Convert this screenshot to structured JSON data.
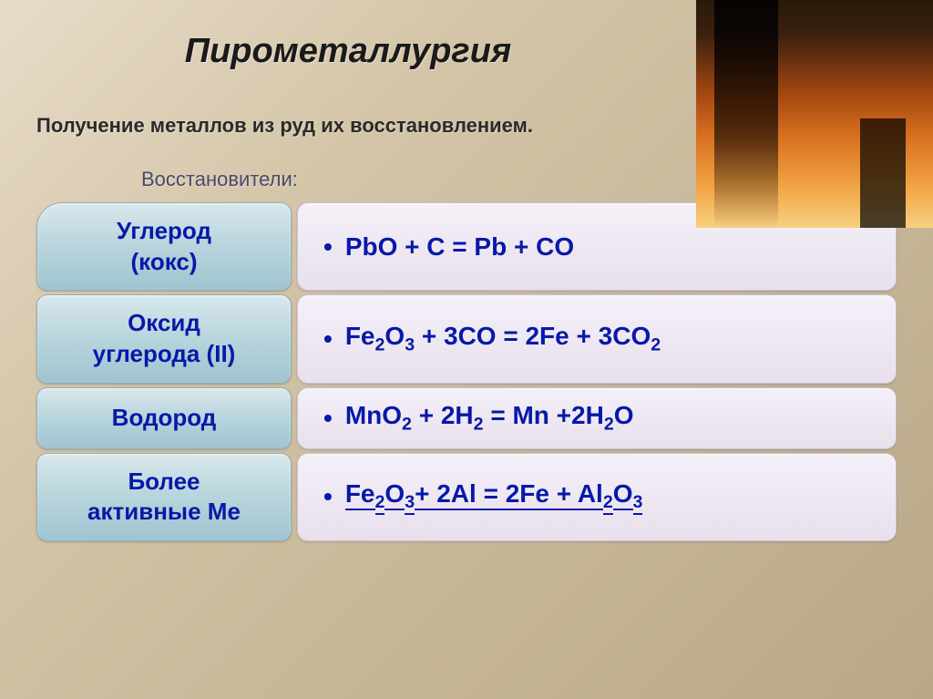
{
  "title": "Пирометаллургия",
  "subtitle": "Получение металлов из руд их восстановлением.",
  "reducers_label": "Восстановители:",
  "rows": [
    {
      "reducer_line1": "Углерод",
      "reducer_line2": "(кокс)",
      "equation_html": "PbO + C = Pb + CO"
    },
    {
      "reducer_line1": "Оксид",
      "reducer_line2": "углерода (II)",
      "equation_html": "Fe<sub>2</sub>O<sub>3</sub> + 3CO = 2Fe + 3CO<sub>2</sub>"
    },
    {
      "reducer_line1": "Водород",
      "reducer_line2": "",
      "equation_html": "MnO<sub>2</sub> + 2H<sub>2</sub> = Mn +2H<sub>2</sub>O"
    },
    {
      "reducer_line1": "Более",
      "reducer_line2": "активные Ме",
      "equation_html": "<span>Fe</span><sub><span>2</span></sub><span>O</span><sub><span>3</span></sub><span>+ 2Al = 2Fe + Al</span><sub><span>2</span></sub><span>O</span><sub><span>3</span></sub>"
    }
  ],
  "colors": {
    "title_color": "#1a1a1a",
    "reducer_text": "#0818a8",
    "equation_text": "#0818a8",
    "left_cell_bg_top": "#d8e8ec",
    "left_cell_bg_bottom": "#a0c4d0",
    "right_cell_bg_top": "#f4f0f8",
    "right_cell_bg_bottom": "#e8e0ec"
  }
}
